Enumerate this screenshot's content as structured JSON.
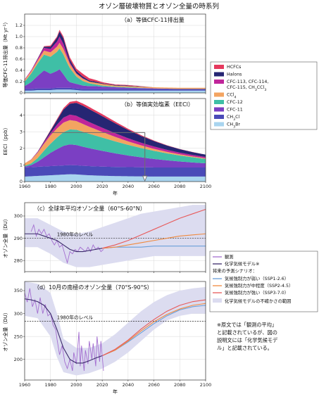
{
  "figure": {
    "title": "オゾン層破壊物質とオゾン全量の時系列",
    "x_axis_label": "年"
  },
  "colors": {
    "HCFCs": "#e5395e",
    "Halons": "#262673",
    "CFC113_114_115": "#c0259a",
    "CCl4": "#f3a461",
    "CFC12": "#3fbfa6",
    "CFC11": "#7b3fc3",
    "CH3Cl": "#4a4ab8",
    "CH3Br": "#a8d4ef",
    "obs": "#a46fd0",
    "model": "#3a2a6a",
    "ssp126": "#6a9fd8",
    "ssp245": "#f08a3e",
    "ssp370": "#e85a5a",
    "uncertainty": "#dcdcf0"
  },
  "legend_species": [
    {
      "key": "HCFCs",
      "label": "HCFCs",
      "color": "#e5395e"
    },
    {
      "key": "Halons",
      "label": "Halons",
      "color": "#262673"
    },
    {
      "key": "CFC113_114_115",
      "label": "CFC-113, CFC-114,",
      "label2": "CFC-115, CH",
      "label2_sub": "3",
      "label2_end": "CCl",
      "label2_sub2": "3",
      "color": "#c0259a"
    },
    {
      "key": "CCl4",
      "label": "CCl",
      "sub": "4",
      "color": "#f3a461"
    },
    {
      "key": "CFC12",
      "label": "CFC-12",
      "color": "#3fbfa6"
    },
    {
      "key": "CFC11",
      "label": "CFC-11",
      "color": "#7b3fc3"
    },
    {
      "key": "CH3Cl",
      "label": "CH",
      "sub": "3",
      "label_end": "Cl",
      "color": "#4a4ab8"
    },
    {
      "key": "CH3Br",
      "label": "CH",
      "sub": "3",
      "label_end": "Br",
      "color": "#a8d4ef"
    }
  ],
  "legend_ozone": {
    "obs": "観測",
    "model": "化学気候モデル※",
    "scenario_heading": "将来の予測シナリオ：",
    "ssp126": "気候強制力が弱い（SSP1-2.6）",
    "ssp245": "気候強制力が中程度（SSP2-4.5）",
    "ssp370": "気候強制力が強い（SSP3-7.0）",
    "uncertainty": "化学気候モデルの不確かさの範囲"
  },
  "footnote": [
    "※原文では「観測の平均」",
    "と記載されているが、図の",
    "説明文には「化学気候モデ",
    "ル」と記載されている。"
  ],
  "chart_data": [
    {
      "id": "a",
      "type": "area",
      "title": "（a）等価CFC-11排出量",
      "ylabel": "等価CFC-11排出量（Mt yr",
      "ylabel_sup": "-1",
      "ylabel_end": "）",
      "xlim": [
        1960,
        2100
      ],
      "ylim": [
        0,
        1.4
      ],
      "yticks": [
        0,
        0.2,
        0.4,
        0.6,
        0.8,
        1.0,
        1.2
      ],
      "xticks": [
        1960,
        1980,
        2000,
        2020,
        2040,
        2060,
        2080,
        2100
      ],
      "stacked": true,
      "x": [
        1960,
        1965,
        1970,
        1975,
        1980,
        1985,
        1987,
        1990,
        1993,
        1995,
        2000,
        2005,
        2010,
        2015,
        2020,
        2030,
        2040,
        2060,
        2080,
        2100
      ],
      "series": [
        {
          "key": "CH3Br",
          "values": [
            0.04,
            0.04,
            0.05,
            0.05,
            0.05,
            0.06,
            0.06,
            0.06,
            0.06,
            0.06,
            0.05,
            0.04,
            0.04,
            0.04,
            0.04,
            0.04,
            0.04,
            0.04,
            0.04,
            0.04
          ]
        },
        {
          "key": "CH3Cl",
          "values": [
            0.03,
            0.03,
            0.03,
            0.03,
            0.03,
            0.03,
            0.03,
            0.03,
            0.03,
            0.03,
            0.03,
            0.03,
            0.03,
            0.03,
            0.03,
            0.03,
            0.03,
            0.03,
            0.03,
            0.03
          ]
        },
        {
          "key": "CFC11",
          "values": [
            0.05,
            0.12,
            0.22,
            0.32,
            0.26,
            0.3,
            0.33,
            0.24,
            0.14,
            0.1,
            0.08,
            0.06,
            0.05,
            0.05,
            0.04,
            0.03,
            0.02,
            0.01,
            0.0,
            0.0
          ]
        },
        {
          "key": "CFC12",
          "values": [
            0.08,
            0.15,
            0.22,
            0.28,
            0.3,
            0.34,
            0.37,
            0.35,
            0.3,
            0.25,
            0.13,
            0.08,
            0.05,
            0.03,
            0.02,
            0.01,
            0.01,
            0.0,
            0.0,
            0.0
          ]
        },
        {
          "key": "CCl4",
          "values": [
            0.03,
            0.04,
            0.05,
            0.07,
            0.08,
            0.09,
            0.1,
            0.1,
            0.09,
            0.07,
            0.05,
            0.04,
            0.03,
            0.03,
            0.03,
            0.02,
            0.02,
            0.02,
            0.02,
            0.02
          ]
        },
        {
          "key": "CFC113_114_115",
          "values": [
            0.01,
            0.02,
            0.03,
            0.05,
            0.06,
            0.09,
            0.11,
            0.09,
            0.05,
            0.03,
            0.01,
            0.01,
            0.0,
            0.0,
            0.0,
            0.0,
            0.0,
            0.0,
            0.0,
            0.0
          ]
        },
        {
          "key": "Halons",
          "values": [
            0.0,
            0.0,
            0.01,
            0.02,
            0.04,
            0.07,
            0.09,
            0.1,
            0.07,
            0.05,
            0.04,
            0.03,
            0.02,
            0.02,
            0.01,
            0.01,
            0.01,
            0.0,
            0.0,
            0.0
          ]
        },
        {
          "key": "HCFCs",
          "values": [
            0.0,
            0.0,
            0.0,
            0.01,
            0.02,
            0.02,
            0.03,
            0.03,
            0.03,
            0.04,
            0.04,
            0.05,
            0.04,
            0.03,
            0.02,
            0.01,
            0.01,
            0.0,
            0.0,
            0.0
          ]
        }
      ]
    },
    {
      "id": "b",
      "type": "area",
      "title": "（b）等価実効塩素（EECl）",
      "ylabel": "EECl（ppb）",
      "xlim": [
        1960,
        2100
      ],
      "ylim": [
        0,
        5
      ],
      "yticks": [
        0,
        1,
        2,
        3,
        4
      ],
      "xticks": [
        1960,
        1980,
        2000,
        2020,
        2040,
        2060,
        2080,
        2100
      ],
      "stacked": true,
      "x": [
        1960,
        1965,
        1970,
        1975,
        1980,
        1985,
        1990,
        1995,
        2000,
        2005,
        2010,
        2020,
        2030,
        2040,
        2050,
        2060,
        2070,
        2080,
        2090,
        2100
      ],
      "series": [
        {
          "key": "CH3Br",
          "values": [
            0.3,
            0.32,
            0.34,
            0.36,
            0.38,
            0.4,
            0.42,
            0.44,
            0.43,
            0.4,
            0.38,
            0.35,
            0.33,
            0.32,
            0.31,
            0.3,
            0.3,
            0.3,
            0.3,
            0.3
          ]
        },
        {
          "key": "CH3Cl",
          "values": [
            0.55,
            0.55,
            0.55,
            0.55,
            0.55,
            0.55,
            0.55,
            0.55,
            0.55,
            0.55,
            0.55,
            0.55,
            0.55,
            0.55,
            0.55,
            0.55,
            0.55,
            0.55,
            0.55,
            0.55
          ]
        },
        {
          "key": "CFC11",
          "values": [
            0.05,
            0.12,
            0.3,
            0.55,
            0.8,
            1.0,
            1.18,
            1.25,
            1.22,
            1.15,
            1.08,
            0.95,
            0.82,
            0.7,
            0.6,
            0.51,
            0.43,
            0.36,
            0.3,
            0.25
          ]
        },
        {
          "key": "CFC12",
          "values": [
            0.05,
            0.1,
            0.22,
            0.4,
            0.55,
            0.7,
            0.82,
            0.9,
            0.92,
            0.9,
            0.87,
            0.8,
            0.72,
            0.64,
            0.56,
            0.49,
            0.42,
            0.36,
            0.31,
            0.26
          ]
        },
        {
          "key": "CCl4",
          "values": [
            0.15,
            0.22,
            0.32,
            0.42,
            0.5,
            0.55,
            0.58,
            0.56,
            0.52,
            0.47,
            0.42,
            0.34,
            0.27,
            0.21,
            0.16,
            0.12,
            0.09,
            0.07,
            0.05,
            0.04
          ]
        },
        {
          "key": "CFC113_114_115",
          "values": [
            0.0,
            0.02,
            0.04,
            0.08,
            0.14,
            0.22,
            0.3,
            0.33,
            0.32,
            0.3,
            0.28,
            0.25,
            0.22,
            0.19,
            0.16,
            0.14,
            0.12,
            0.1,
            0.09,
            0.08
          ]
        },
        {
          "key": "Halons",
          "values": [
            0.0,
            0.0,
            0.02,
            0.06,
            0.14,
            0.28,
            0.48,
            0.66,
            0.78,
            0.8,
            0.78,
            0.7,
            0.6,
            0.5,
            0.41,
            0.33,
            0.26,
            0.21,
            0.17,
            0.14
          ]
        },
        {
          "key": "HCFCs",
          "values": [
            0.0,
            0.0,
            0.01,
            0.02,
            0.04,
            0.06,
            0.09,
            0.11,
            0.12,
            0.13,
            0.13,
            0.12,
            0.1,
            0.07,
            0.05,
            0.03,
            0.02,
            0.01,
            0.01,
            0.0
          ]
        }
      ],
      "annotation": {
        "type": "arrow",
        "from_year": 1980,
        "level": 2.95,
        "to_year": 2053
      }
    },
    {
      "id": "c",
      "type": "line",
      "title": "（c）全球年平均オゾン全量（60°S-60°N）",
      "ylabel": "オゾン全量（DU）",
      "xlim": [
        1960,
        2100
      ],
      "ylim": [
        275,
        306
      ],
      "yticks": [
        280,
        290,
        300
      ],
      "xticks": [
        1960,
        1980,
        2000,
        2020,
        2040,
        2060,
        2080,
        2100
      ],
      "ref_line": {
        "value": 290,
        "label": "1980年のレベル"
      },
      "band_x": [
        1960,
        1970,
        1980,
        1990,
        2000,
        2010,
        2020,
        2030,
        2040,
        2050,
        2060,
        2070,
        2080,
        2090,
        2100
      ],
      "band_low": [
        286,
        286,
        283,
        279,
        277,
        277,
        278,
        279,
        280,
        281,
        282,
        282,
        282,
        282,
        282
      ],
      "band_high": [
        299,
        299,
        296,
        293,
        292,
        293,
        295,
        297,
        299,
        301,
        302,
        303,
        304,
        305,
        305
      ],
      "observed": {
        "x": [
          1965,
          1967,
          1969,
          1971,
          1973,
          1975,
          1977,
          1979,
          1981,
          1983,
          1985,
          1987,
          1989,
          1991,
          1993,
          1995,
          1997,
          1999,
          2001,
          2003,
          2005,
          2007,
          2009,
          2011,
          2013,
          2015,
          2017,
          2019,
          2021
        ],
        "values": [
          293,
          296,
          291,
          294,
          292,
          294,
          291,
          292,
          289,
          287,
          289,
          286,
          287,
          283,
          279,
          284,
          283,
          285,
          284,
          286,
          285,
          284,
          286,
          284,
          287,
          285,
          286,
          284,
          285
        ]
      },
      "model": {
        "x": [
          1960,
          1965,
          1970,
          1975,
          1980,
          1985,
          1990,
          1995,
          2000,
          2005,
          2010,
          2015,
          2020
        ],
        "values": [
          292,
          292,
          292,
          291,
          290,
          289,
          287,
          285,
          284,
          284,
          284.5,
          285,
          285.5
        ]
      },
      "scenarios": [
        {
          "key": "ssp126",
          "x": [
            2020,
            2030,
            2040,
            2050,
            2060,
            2070,
            2080,
            2090,
            2100
          ],
          "values": [
            285.5,
            286,
            286,
            286,
            286.5,
            286.5,
            286.5,
            286.5,
            286.5
          ]
        },
        {
          "key": "ssp245",
          "x": [
            2020,
            2030,
            2040,
            2050,
            2060,
            2070,
            2080,
            2090,
            2100
          ],
          "values": [
            285.5,
            286,
            287,
            288,
            289,
            290,
            291,
            291.5,
            292
          ]
        },
        {
          "key": "ssp370",
          "x": [
            2020,
            2030,
            2040,
            2050,
            2060,
            2070,
            2080,
            2090,
            2100
          ],
          "values": [
            285.5,
            287,
            289,
            291.5,
            294,
            296.5,
            299,
            301,
            303
          ]
        }
      ]
    },
    {
      "id": "d",
      "type": "line",
      "title": "（d）10月の南極のオゾン全量（70°S-90°S）",
      "ylabel": "オゾン全量（DU）",
      "xlim": [
        1960,
        2100
      ],
      "ylim": [
        155,
        370
      ],
      "yticks": [
        200,
        250,
        300,
        350
      ],
      "xticks": [
        1960,
        1980,
        2000,
        2020,
        2040,
        2060,
        2080,
        2100
      ],
      "ref_line": {
        "value": 283,
        "label": "1980年のレベル"
      },
      "band_x": [
        1960,
        1970,
        1980,
        1985,
        1990,
        2000,
        2010,
        2020,
        2030,
        2040,
        2050,
        2060,
        2070,
        2080,
        2090,
        2100
      ],
      "band_low": [
        295,
        290,
        250,
        205,
        172,
        165,
        170,
        180,
        195,
        215,
        240,
        265,
        285,
        295,
        300,
        300
      ],
      "band_high": [
        370,
        365,
        345,
        300,
        245,
        225,
        225,
        235,
        255,
        280,
        305,
        325,
        340,
        350,
        355,
        358
      ],
      "observed": {
        "x": [
          1960,
          1962,
          1964,
          1966,
          1968,
          1970,
          1972,
          1974,
          1976,
          1978,
          1980,
          1982,
          1984,
          1985,
          1987,
          1989,
          1991,
          1993,
          1995,
          1997,
          1998,
          2000,
          2002,
          2003,
          2004,
          2006,
          2007,
          2009,
          2010,
          2012,
          2013,
          2015,
          2016,
          2018,
          2019,
          2021
        ],
        "values": [
          345,
          325,
          355,
          315,
          330,
          300,
          335,
          300,
          320,
          295,
          300,
          275,
          265,
          245,
          210,
          230,
          195,
          180,
          200,
          175,
          215,
          190,
          260,
          185,
          230,
          175,
          220,
          190,
          240,
          200,
          235,
          185,
          250,
          195,
          240,
          175
        ]
      },
      "model": {
        "x": [
          1960,
          1965,
          1970,
          1975,
          1980,
          1985,
          1990,
          1995,
          2000,
          2005,
          2010,
          2015,
          2020
        ],
        "values": [
          332,
          330,
          326,
          318,
          300,
          265,
          225,
          200,
          192,
          192,
          197,
          203,
          208
        ]
      },
      "scenarios": [
        {
          "key": "ssp126",
          "x": [
            2020,
            2030,
            2040,
            2050,
            2060,
            2070,
            2080,
            2090,
            2100
          ],
          "values": [
            208,
            220,
            238,
            258,
            278,
            295,
            308,
            315,
            318
          ]
        },
        {
          "key": "ssp245",
          "x": [
            2020,
            2030,
            2040,
            2050,
            2060,
            2070,
            2080,
            2090,
            2100
          ],
          "values": [
            208,
            220,
            240,
            262,
            282,
            298,
            310,
            318,
            322
          ]
        },
        {
          "key": "ssp370",
          "x": [
            2020,
            2030,
            2040,
            2050,
            2060,
            2070,
            2080,
            2090,
            2100
          ],
          "values": [
            208,
            222,
            242,
            266,
            287,
            305,
            318,
            326,
            330
          ]
        }
      ]
    }
  ]
}
